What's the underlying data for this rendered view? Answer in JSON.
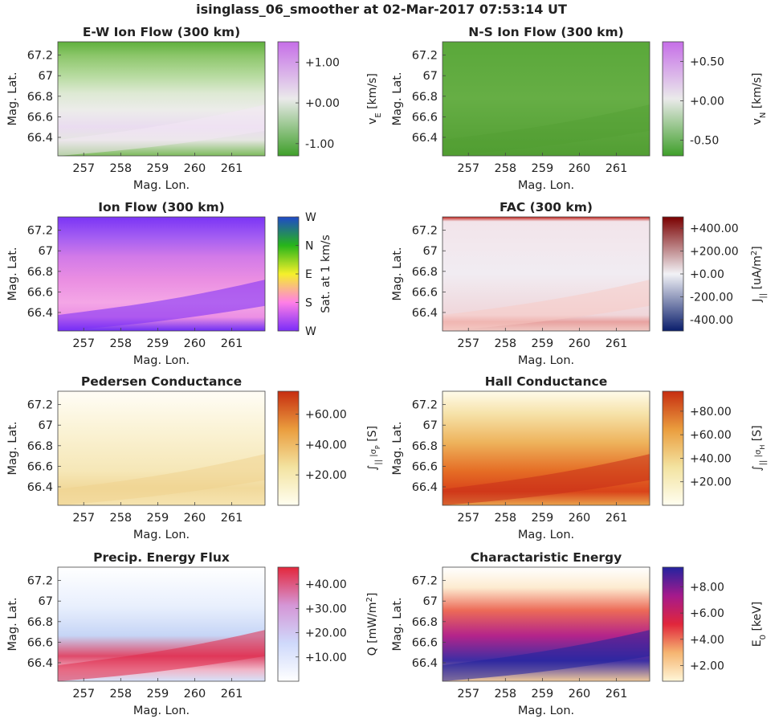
{
  "suptitle": "isinglass_06_smoother at 02-Mar-2017 07:53:14 UT",
  "shared_axes": {
    "xlabel": "Mag. Lon.",
    "ylabel": "Mag. Lat.",
    "xticks": [
      "257",
      "258",
      "259",
      "260",
      "261"
    ],
    "yticks": [
      "66.4",
      "66.6",
      "66.8",
      "67",
      "67.2"
    ],
    "xlim": [
      256.3,
      261.9
    ],
    "ylim": [
      66.22,
      67.33
    ]
  },
  "chart_data": [
    {
      "type": "heatmap",
      "title": "E-W Ion Flow (300 km)",
      "colormap": "green-white-purple",
      "colors": [
        "#3f9f2a",
        "#eaeaea",
        "#c66ee8"
      ],
      "colorbar_label": "v_E [km/s]",
      "colorbar_label_main": "v",
      "colorbar_label_sub": "E",
      "colorbar_label_unit": "[km/s]",
      "colorbar_ticks": [
        "+1.00",
        "+0.00",
        "-1.00"
      ],
      "colorbar_tick_values": [
        1.0,
        0.0,
        -1.0
      ],
      "clim": [
        -1.3,
        1.5
      ]
    },
    {
      "type": "heatmap",
      "title": "N-S Ion Flow (300 km)",
      "colormap": "green-white-purple",
      "colors": [
        "#3f9f2a",
        "#eaeaea",
        "#c66ee8"
      ],
      "colorbar_label": "v_N [km/s]",
      "colorbar_label_main": "v",
      "colorbar_label_sub": "N",
      "colorbar_label_unit": "[km/s]",
      "colorbar_ticks": [
        "+0.50",
        "+0.00",
        "-0.50"
      ],
      "colorbar_tick_values": [
        0.5,
        0.0,
        -0.5
      ],
      "clim": [
        -0.7,
        0.75
      ]
    },
    {
      "type": "heatmap",
      "title": "Ion Flow (300 km)",
      "colormap": "direction-hue",
      "colors": [
        "#7a2cf8",
        "#ff7fe6",
        "#f5f02a",
        "#27b51a",
        "#1f49c9"
      ],
      "colorbar_label": "Sat. at 1 km/s",
      "colorbar_ticks": [
        "W",
        "N",
        "E",
        "S",
        "W"
      ]
    },
    {
      "type": "heatmap",
      "title": "FAC (300 km)",
      "colormap": "blue-white-red",
      "colors": [
        "#0a1d6b",
        "#f2f2f6",
        "#7a0000"
      ],
      "colorbar_label": "J_|| [uA/m^2]",
      "colorbar_label_main": "J",
      "colorbar_label_sub": "||",
      "colorbar_label_unit": "[uA/m",
      "colorbar_label_sup": "2",
      "colorbar_label_end": "]",
      "colorbar_ticks": [
        "+400.00",
        "+200.00",
        "+0.00",
        "-200.00",
        "-400.00"
      ],
      "colorbar_tick_values": [
        400,
        200,
        0,
        -200,
        -400
      ],
      "clim": [
        -500,
        500
      ]
    },
    {
      "type": "heatmap",
      "title": "Pedersen Conductance",
      "colormap": "cream-orange-red",
      "colors": [
        "#fffef0",
        "#f3e3a1",
        "#ea9d3e",
        "#c62d10"
      ],
      "colorbar_label": "∫|| σP [S]",
      "colorbar_label_main": "∫",
      "colorbar_label_sub": "||",
      "colorbar_label_mid": "|",
      "colorbar_label_sigma": "σ",
      "colorbar_label_sigma_sub": "P",
      "colorbar_label_unit": "[S]",
      "colorbar_ticks": [
        "+60.00",
        "+40.00",
        "+20.00"
      ],
      "colorbar_tick_values": [
        60,
        40,
        20
      ],
      "clim": [
        0,
        75
      ]
    },
    {
      "type": "heatmap",
      "title": "Hall Conductance",
      "colormap": "cream-orange-red",
      "colors": [
        "#fffef0",
        "#f3e3a1",
        "#ea9d3e",
        "#c62d10"
      ],
      "colorbar_label": "∫|| σH [S]",
      "colorbar_label_main": "∫",
      "colorbar_label_sub": "||",
      "colorbar_label_mid": "|",
      "colorbar_label_sigma": "σ",
      "colorbar_label_sigma_sub": "H",
      "colorbar_label_unit": "[S]",
      "colorbar_ticks": [
        "+80.00",
        "+60.00",
        "+40.00",
        "+20.00"
      ],
      "colorbar_tick_values": [
        80,
        60,
        40,
        20
      ],
      "clim": [
        0,
        97
      ]
    },
    {
      "type": "heatmap",
      "title": "Precip. Energy Flux",
      "colormap": "white-blue-red",
      "colors": [
        "#ffffff",
        "#cfd9fb",
        "#d596d6",
        "#e3273c"
      ],
      "colorbar_label": "Q [mW/m^2]",
      "colorbar_label_main": "Q [mW/m",
      "colorbar_label_sup": "2",
      "colorbar_label_end": "]",
      "colorbar_ticks": [
        "+40.00",
        "+30.00",
        "+20.00",
        "+10.00"
      ],
      "colorbar_tick_values": [
        40,
        30,
        20,
        10
      ],
      "clim": [
        0,
        47
      ]
    },
    {
      "type": "heatmap",
      "title": "Charactaristic Energy",
      "colormap": "cream-red-purple-blue",
      "colors": [
        "#fff6d8",
        "#f5b571",
        "#e1263b",
        "#a51a8c",
        "#23239f"
      ],
      "colorbar_label": "E_0 [keV]",
      "colorbar_label_main": "E",
      "colorbar_label_sub": "0",
      "colorbar_label_unit": "[keV]",
      "colorbar_ticks": [
        "+8.00",
        "+6.00",
        "+4.00",
        "+2.00"
      ],
      "colorbar_tick_values": [
        8,
        6,
        4,
        2
      ],
      "clim": [
        0.8,
        9.5
      ]
    }
  ]
}
